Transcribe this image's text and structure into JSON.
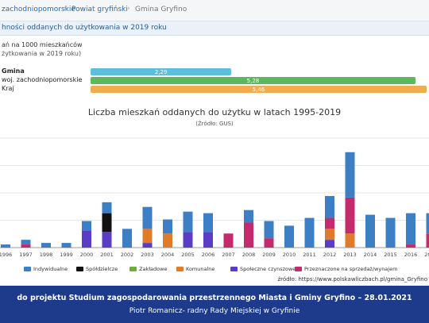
{
  "breadcrumb": {
    "items": [
      {
        "label": "zachodniopomorskie",
        "color": "#2a6db0"
      },
      {
        "label": "Powiat gryfiński",
        "color": "#2a6db0"
      },
      {
        "label": "Gmina Gryfino",
        "color": "#777777"
      }
    ]
  },
  "section": {
    "title": "hności oddanych do użytkowania w 2019 roku",
    "sub1": "ań na 1000 mieszkańców",
    "sub2": "żytkowania w 2019 roku)"
  },
  "comparison": [
    {
      "label": "Gmina",
      "value": "2,29",
      "num": 2.29,
      "color": "#5bc0de"
    },
    {
      "label": "woj. zachodniopomorskie",
      "value": "5,28",
      "num": 5.28,
      "color": "#5cb85c"
    },
    {
      "label": "Kraj",
      "value": "5,46",
      "num": 5.46,
      "color": "#f0ad4e"
    }
  ],
  "chart_data": {
    "type": "bar",
    "title": "Liczba mieszkań oddanych do użytku w latach 1995-2019",
    "subtitle": "(Źródło: GUS)",
    "categories": [
      "1996",
      "1997",
      "1998",
      "1999",
      "2000",
      "2001",
      "2002",
      "2003",
      "2004",
      "2005",
      "2006",
      "2007",
      "2008",
      "2009",
      "2010",
      "2011",
      "2012",
      "2013",
      "2014",
      "2015",
      "2016",
      "2017"
    ],
    "ylim": [
      0,
      140
    ],
    "series": [
      {
        "name": "Indywidualne",
        "color": "#3c7fc4",
        "values": [
          4,
          6,
          6,
          6,
          12,
          14,
          24,
          28,
          18,
          26,
          24,
          0,
          16,
          22,
          28,
          38,
          28,
          58,
          42,
          38,
          40,
          26
        ]
      },
      {
        "name": "Spółdzielcze",
        "color": "#111111",
        "values": [
          0,
          0,
          0,
          0,
          0,
          24,
          0,
          0,
          0,
          0,
          0,
          0,
          0,
          0,
          0,
          0,
          0,
          0,
          0,
          0,
          0,
          0
        ]
      },
      {
        "name": "Zakładowe",
        "color": "#6fae3a",
        "values": [
          0,
          0,
          0,
          0,
          0,
          0,
          0,
          0,
          0,
          0,
          0,
          0,
          0,
          0,
          0,
          0,
          0,
          0,
          0,
          0,
          0,
          0
        ]
      },
      {
        "name": "Komunalne",
        "color": "#e07b2a",
        "values": [
          0,
          0,
          0,
          0,
          0,
          0,
          0,
          18,
          18,
          0,
          0,
          0,
          0,
          0,
          0,
          0,
          14,
          18,
          0,
          0,
          0,
          0
        ]
      },
      {
        "name": "Społeczne czynszowe",
        "color": "#5b3cc4",
        "values": [
          0,
          0,
          0,
          0,
          22,
          20,
          0,
          6,
          0,
          20,
          20,
          0,
          0,
          0,
          0,
          0,
          10,
          0,
          0,
          0,
          0,
          0
        ]
      },
      {
        "name": "Przeznaczone na sprzedaż/wynajem",
        "color": "#c42a6c",
        "values": [
          0,
          4,
          0,
          0,
          0,
          0,
          0,
          0,
          0,
          0,
          0,
          18,
          32,
          12,
          0,
          0,
          14,
          46,
          0,
          0,
          4,
          18
        ]
      }
    ]
  },
  "legend_items": [
    "Indywidualne",
    "Spółdzielcze",
    "Zakładowe",
    "Komunalne",
    "Społeczne czynszowe",
    "Przeznaczone na sprzedaż/wynajem"
  ],
  "source": "źródło: https://www.polskawliczbach.pl/gmina_Gryfino",
  "footer": {
    "line1": "do projektu Studium zagospodarowania przestrzennego Miasta i Gminy Gryfino – 28.01.2021",
    "line2": "Piotr Romanicz- radny Rady Miejskiej w Gryfinie"
  },
  "colors": {
    "footer_bg": "#1d3b8a",
    "section_text": "#2a5d8f"
  }
}
